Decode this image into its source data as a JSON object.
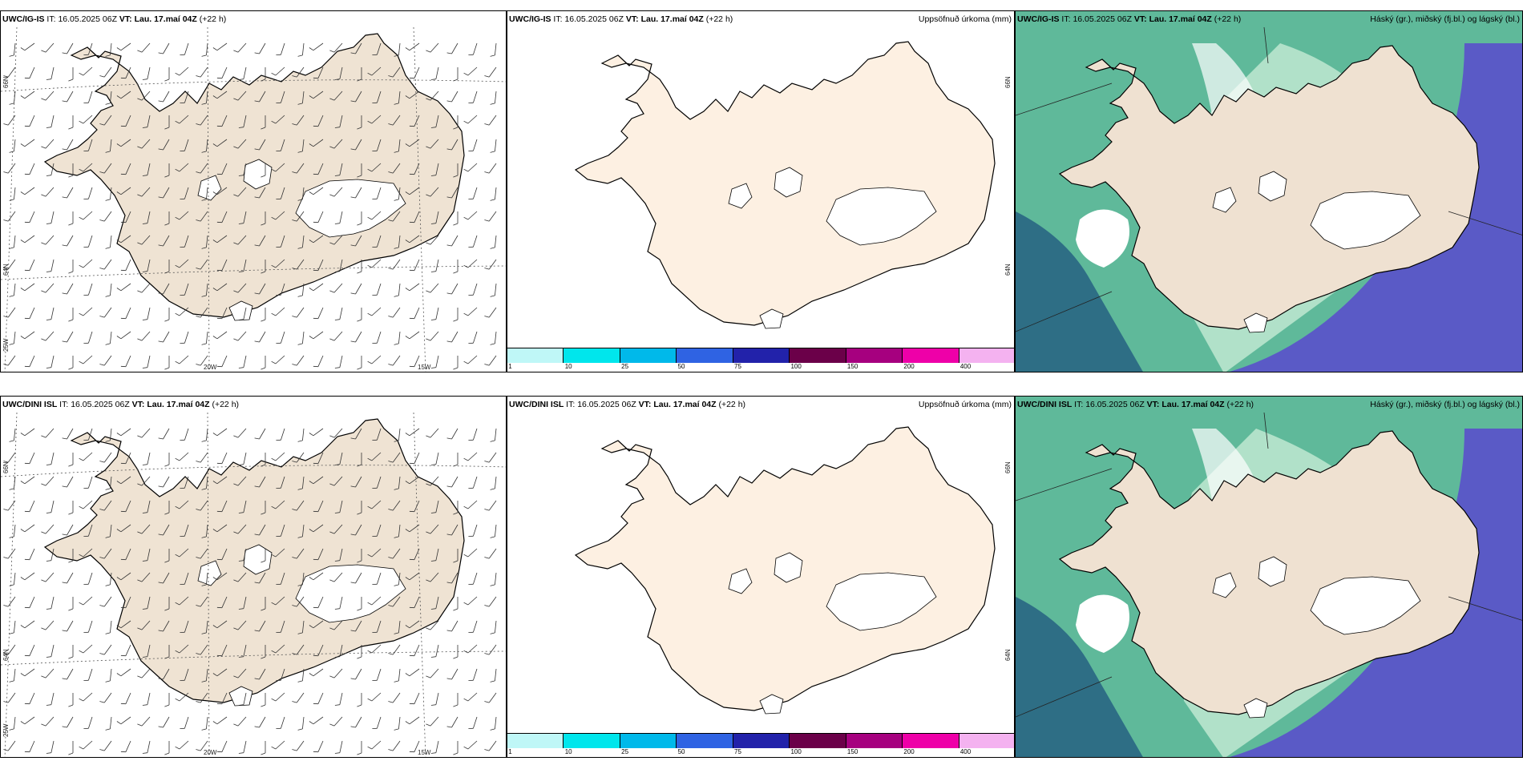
{
  "rows": [
    {
      "model": "UWC/IG-IS",
      "it_label": "IT:",
      "it_value": "16.05.2025 06Z",
      "vt_label": "VT:",
      "vt_value": "Lau. 17.maí 04Z",
      "lead": "(+22 h)"
    },
    {
      "model": "UWC/DINI ISL",
      "it_label": "IT:",
      "it_value": "16.05.2025 06Z",
      "vt_label": "VT:",
      "vt_value": "Lau. 17.maí 04Z",
      "lead": "(+22 h)"
    }
  ],
  "precip_title": "Uppsöfnuð úrkoma (mm)",
  "cloud_title": "Háský (gr.), miðský (fj.bl.) og lágský (bl.)",
  "wind_map": {
    "lat_labels": [
      "66N",
      "64N",
      "25W"
    ],
    "lon_labels": [
      "20W",
      "15W"
    ]
  },
  "precip_map": {
    "lat_labels": [
      "66N",
      "64N"
    ]
  },
  "colorbar": {
    "levels": [
      "1",
      "10",
      "25",
      "50",
      "75",
      "100",
      "150",
      "200",
      "400"
    ],
    "colors": [
      "#bff7f7",
      "#00e6ec",
      "#00b9ea",
      "#2f63e3",
      "#2222aa",
      "#6b0049",
      "#a6007f",
      "#ee00a8",
      "#f4b2f0"
    ]
  },
  "colors": {
    "land_wind": "#efe3d3",
    "land_precip": "#fdf0e2",
    "land_cloud": "#efe1d1",
    "sea_green": "#5fb99a",
    "dark_teal": "#2e6e85",
    "low_cloud_blue": "#5a5ac6",
    "mint": "#c6ebd4"
  }
}
